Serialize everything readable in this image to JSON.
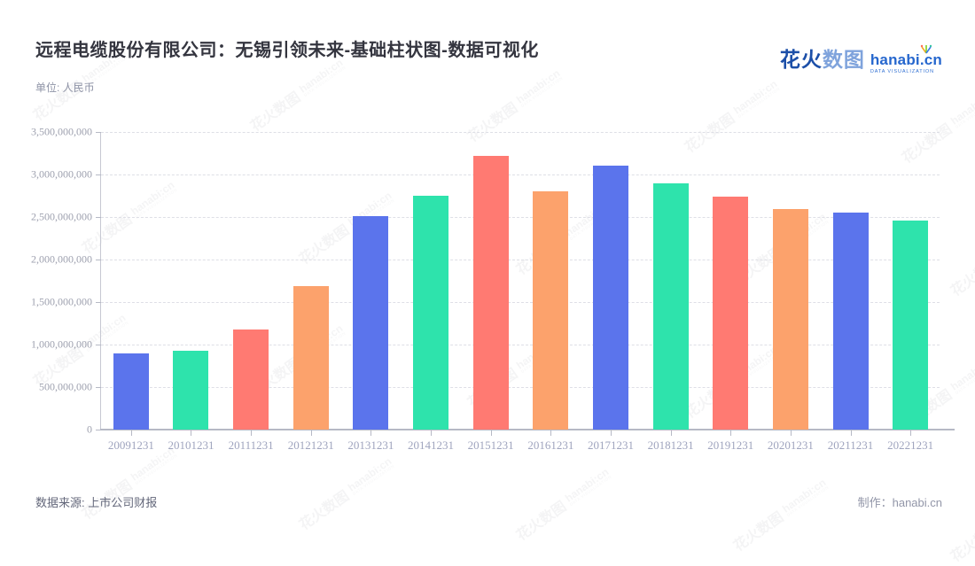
{
  "header": {
    "title": "远程电缆股份有限公司：无锡引领未来-基础柱状图-数据可视化",
    "subtitle": "单位: 人民币"
  },
  "logo": {
    "zh_bold": "花火",
    "zh_light": "数图",
    "domain": "hanabi.cn",
    "tagline": "DATA VISUALIZATION",
    "sparkle_colors": [
      "#f5a623",
      "#7ed321",
      "#37c5a2",
      "#3c7be8",
      "#ff6b57"
    ]
  },
  "watermark": {
    "zh": "花火数图",
    "domain": "hanabi:cn",
    "tagline": "DATA VISUALIZATION"
  },
  "footer": {
    "source": "数据来源: 上市公司财报",
    "credit": "制作：hanabi.cn"
  },
  "chart_data": {
    "type": "bar",
    "title": "远程电缆股份有限公司：无锡引领未来-基础柱状图-数据可视化",
    "unit_label": "单位: 人民币",
    "categories": [
      "20091231",
      "20101231",
      "20111231",
      "20121231",
      "20131231",
      "20141231",
      "20151231",
      "20161231",
      "20171231",
      "20181231",
      "20191231",
      "20201231",
      "20211231",
      "20221231"
    ],
    "values": [
      900000000,
      925000000,
      1180000000,
      1690000000,
      2510000000,
      2755000000,
      3220000000,
      2800000000,
      3105000000,
      2900000000,
      2740000000,
      2590000000,
      2550000000,
      2460000000
    ],
    "xlabel": "",
    "ylabel": "人民币",
    "ylim": [
      0,
      3500000000
    ],
    "ytick_interval": 500000000,
    "ytick_labels": [
      "0",
      "500,000,000",
      "1,000,000,000",
      "1,500,000,000",
      "2,000,000,000",
      "2,500,000,000",
      "3,000,000,000",
      "3,500,000,000"
    ],
    "grid": true,
    "grid_style": "dashed",
    "legend_position": "none",
    "bar_colors_cycle": [
      "#5b74ec",
      "#2ee3ac",
      "#ff7a72",
      "#fca26c"
    ]
  }
}
